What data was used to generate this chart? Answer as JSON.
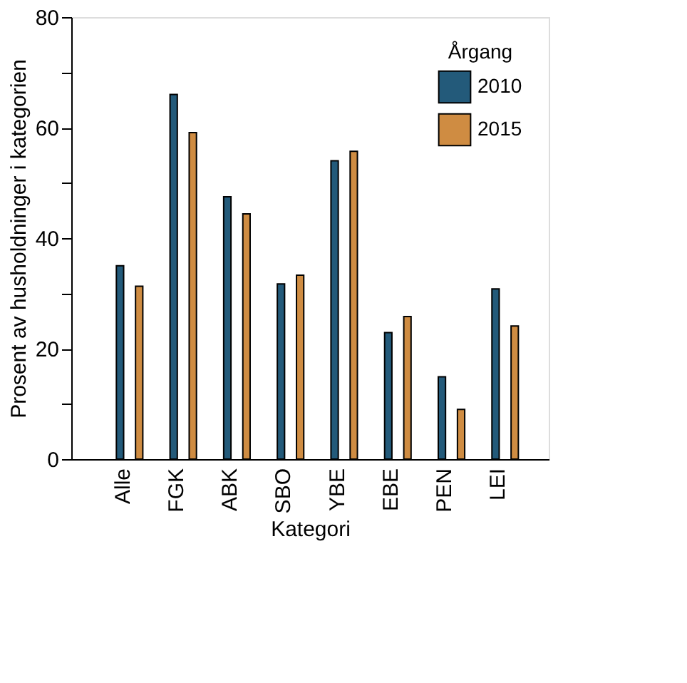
{
  "chart_data": {
    "type": "bar",
    "xlabel": "Kategori",
    "ylabel": "Prosent av husholdninger i kategorien",
    "legend_title": "Årgang",
    "categories": [
      "Alle",
      "FGK",
      "ABK",
      "SBO",
      "YBE",
      "EBE",
      "PEN",
      "LEI"
    ],
    "series": [
      {
        "name": "2010",
        "color": "#235a7a",
        "values": [
          35.0,
          66.0,
          47.5,
          31.7,
          54.0,
          22.9,
          14.9,
          30.8
        ]
      },
      {
        "name": "2015",
        "color": "#cf8c42",
        "values": [
          31.3,
          59.1,
          44.4,
          33.3,
          55.7,
          25.8,
          9.0,
          24.1
        ]
      }
    ],
    "ylim": [
      0,
      80
    ],
    "yticks": [
      0,
      {
        "value": 10,
        "label": null
      },
      20,
      {
        "value": 30,
        "label": null
      },
      40,
      {
        "value": 50,
        "label": null
      },
      60,
      {
        "value": 70,
        "label": null
      },
      80
    ],
    "grid": false,
    "legend": "top right"
  }
}
